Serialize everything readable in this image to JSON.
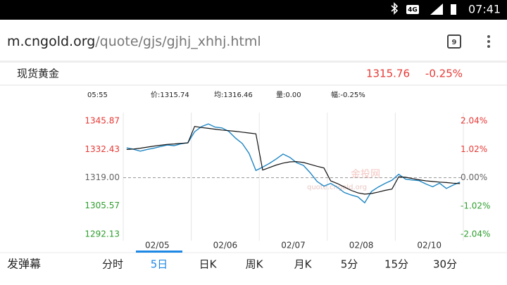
{
  "status_bar": {
    "network": "4G",
    "time": "07:41"
  },
  "browser": {
    "domain": "m.cngold.org",
    "path": "/quote/gjs/gjhj_xhhj.html",
    "tab_count": 9
  },
  "quote": {
    "name": "现货黄金",
    "price": 1315.76,
    "change": "-0.25%"
  },
  "info": [
    "05:55",
    "价:1315.74",
    "均:1316.46",
    "量:0.00",
    "幅:-0.25%"
  ],
  "watermark": {
    "brand": "金投网",
    "url": "quote.cngold.org"
  },
  "chart_data": {
    "type": "line",
    "x_labels": [
      "02/05",
      "02/06",
      "02/07",
      "02/08",
      "02/10"
    ],
    "ylim": [
      1292.13,
      1345.87
    ],
    "yticks": [
      1292.13,
      1305.57,
      {
        "value": 1319.0,
        "label": "1319.00"
      },
      1332.43,
      1345.87
    ],
    "y2lim": [
      -2.04,
      2.04
    ],
    "y2ticks": [
      {
        "value": -2.04,
        "label": "-2.04%"
      },
      {
        "value": -1.02,
        "label": "-1.02%"
      },
      {
        "value": 0,
        "label": "0.00%"
      },
      {
        "value": 1.02,
        "label": "1.02%"
      },
      {
        "value": 2.04,
        "label": "2.04%"
      }
    ],
    "series": [
      {
        "name": "price",
        "color": "#1f86c4",
        "values": [
          1333.2,
          1332.5,
          1331.6,
          1332.4,
          1333.0,
          1333.8,
          1334.5,
          1334.2,
          1335.1,
          1335.6,
          1340.8,
          1343.2,
          1344.5,
          1343.0,
          1342.6,
          1341.0,
          1337.8,
          1335.2,
          1330.5,
          1322.4,
          1324.0,
          1325.8,
          1327.9,
          1330.2,
          1328.6,
          1326.1,
          1324.8,
          1321.3,
          1317.2,
          1315.0,
          1316.3,
          1314.4,
          1312.0,
          1310.8,
          1309.9,
          1307.1,
          1312.5,
          1314.6,
          1316.3,
          1317.8,
          1320.6,
          1318.3,
          1317.9,
          1317.6,
          1316.0,
          1314.7,
          1316.4,
          1313.9,
          1315.5,
          1316.9
        ]
      },
      {
        "name": "average",
        "color": "#111111",
        "values": [
          1332.4,
          1332.6,
          1333.0,
          1333.5,
          1334.0,
          1334.4,
          1334.8,
          1335.0,
          1335.3,
          1335.5,
          1343.3,
          1342.8,
          1342.4,
          1342.0,
          1341.6,
          1341.3,
          1341.0,
          1340.6,
          1340.2,
          1339.8,
          1322.6,
          1323.8,
          1325.0,
          1325.9,
          1326.5,
          1326.6,
          1326.2,
          1325.3,
          1324.4,
          1323.6,
          1317.5,
          1316.2,
          1314.6,
          1313.0,
          1311.8,
          1311.2,
          1311.5,
          1312.2,
          1313.0,
          1313.6,
          1319.4,
          1319.2,
          1318.6,
          1318.0,
          1317.5,
          1317.2,
          1316.9,
          1316.7,
          1316.4,
          1316.2
        ]
      }
    ]
  },
  "tabs": {
    "label": "发弹幕",
    "items": [
      "分时",
      "5日",
      "日K",
      "周K",
      "月K",
      "5分",
      "15分",
      "30分"
    ],
    "active": 1
  }
}
